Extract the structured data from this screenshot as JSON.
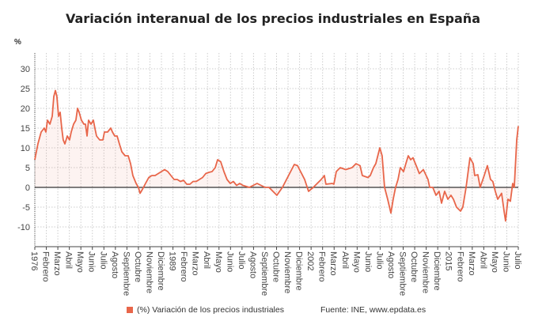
{
  "chart_data": {
    "type": "area",
    "title": "Variación interanual de los precios industriales en España",
    "ylabel": "%",
    "ylim": [
      -10,
      30
    ],
    "yticks": [
      30,
      25,
      20,
      15,
      10,
      5,
      0,
      -5,
      -10
    ],
    "x_ticks": [
      "1976",
      "Febrero",
      "Marzo",
      "Abril",
      "Mayo",
      "Junio",
      "Julio",
      "Agosto",
      "Septiembre",
      "Octubre",
      "Noviembre",
      "Diciembre",
      "1989",
      "Febrero",
      "Marzo",
      "Abril",
      "Mayo",
      "Junio",
      "Julio",
      "Agosto",
      "Septiembre",
      "Octubre",
      "Noviembre",
      "Diciembre",
      "2002",
      "Febrero",
      "Marzo",
      "Abril",
      "Mayo",
      "Junio",
      "Julio",
      "Agosto",
      "Septiembre",
      "Octubre",
      "Noviembre",
      "Diciembre",
      "2015",
      "Febrero",
      "Marzo",
      "Abril",
      "Mayo",
      "Junio",
      "Julio"
    ],
    "grid": true,
    "legend_placement": "bottom",
    "series": [
      {
        "name": "(%) Variación de los precios industriales",
        "color": "#e8664a",
        "points": [
          [
            0,
            7
          ],
          [
            0.27,
            11
          ],
          [
            0.55,
            14
          ],
          [
            0.82,
            15
          ],
          [
            0.96,
            14
          ],
          [
            1.1,
            17
          ],
          [
            1.31,
            16
          ],
          [
            1.51,
            18
          ],
          [
            1.65,
            23
          ],
          [
            1.79,
            24.5
          ],
          [
            1.92,
            23
          ],
          [
            2.06,
            18
          ],
          [
            2.2,
            19
          ],
          [
            2.34,
            15
          ],
          [
            2.47,
            12
          ],
          [
            2.61,
            11
          ],
          [
            2.82,
            13
          ],
          [
            3.02,
            12
          ],
          [
            3.16,
            14
          ],
          [
            3.37,
            16
          ],
          [
            3.57,
            17
          ],
          [
            3.71,
            20
          ],
          [
            3.85,
            19
          ],
          [
            4.05,
            17
          ],
          [
            4.26,
            16
          ],
          [
            4.4,
            16
          ],
          [
            4.54,
            13
          ],
          [
            4.67,
            17
          ],
          [
            4.88,
            16
          ],
          [
            5.09,
            17
          ],
          [
            5.22,
            15
          ],
          [
            5.36,
            13
          ],
          [
            5.64,
            12
          ],
          [
            5.91,
            12
          ],
          [
            6.05,
            14
          ],
          [
            6.32,
            14
          ],
          [
            6.6,
            15
          ],
          [
            6.74,
            14
          ],
          [
            6.94,
            13
          ],
          [
            7.15,
            13
          ],
          [
            7.35,
            11
          ],
          [
            7.56,
            9
          ],
          [
            7.84,
            8
          ],
          [
            8.11,
            8
          ],
          [
            8.32,
            6
          ],
          [
            8.52,
            3
          ],
          [
            8.8,
            1
          ],
          [
            9.0,
            0
          ],
          [
            9.14,
            -1.5
          ],
          [
            9.35,
            -0.5
          ],
          [
            9.62,
            1
          ],
          [
            9.9,
            2.5
          ],
          [
            10.17,
            3
          ],
          [
            10.45,
            3
          ],
          [
            10.72,
            3.5
          ],
          [
            11.0,
            4
          ],
          [
            11.27,
            4.5
          ],
          [
            11.55,
            4
          ],
          [
            11.82,
            3
          ],
          [
            12.1,
            2
          ],
          [
            12.37,
            2
          ],
          [
            12.65,
            1.5
          ],
          [
            12.92,
            1.8
          ],
          [
            13.2,
            0.8
          ],
          [
            13.47,
            0.8
          ],
          [
            13.75,
            1.5
          ],
          [
            14.02,
            1.5
          ],
          [
            14.3,
            2
          ],
          [
            14.57,
            2.5
          ],
          [
            14.85,
            3.5
          ],
          [
            15.12,
            3.8
          ],
          [
            15.4,
            4
          ],
          [
            15.67,
            5
          ],
          [
            15.88,
            7
          ],
          [
            16.15,
            6.5
          ],
          [
            16.43,
            4
          ],
          [
            16.7,
            2
          ],
          [
            16.98,
            1
          ],
          [
            17.25,
            1.5
          ],
          [
            17.53,
            0.5
          ],
          [
            17.8,
            1
          ],
          [
            18.08,
            0.5
          ],
          [
            18.63,
            0
          ],
          [
            19.31,
            1
          ],
          [
            20.0,
            0
          ],
          [
            20.34,
            0
          ],
          [
            21.03,
            -2
          ],
          [
            21.51,
            0
          ],
          [
            22.54,
            5.8
          ],
          [
            22.82,
            5.5
          ],
          [
            23.44,
            2
          ],
          [
            23.78,
            -1
          ],
          [
            24.19,
            0
          ],
          [
            24.88,
            2
          ],
          [
            25.15,
            3
          ],
          [
            25.29,
            0.8
          ],
          [
            25.84,
            1
          ],
          [
            25.98,
            0.8
          ],
          [
            26.19,
            4
          ],
          [
            26.53,
            5
          ],
          [
            27.01,
            4.5
          ],
          [
            27.56,
            5
          ],
          [
            27.9,
            6
          ],
          [
            28.25,
            5.5
          ],
          [
            28.45,
            3
          ],
          [
            28.93,
            2.5
          ],
          [
            29.14,
            3
          ],
          [
            29.42,
            5
          ],
          [
            29.62,
            6
          ],
          [
            29.97,
            10
          ],
          [
            30.17,
            8
          ],
          [
            30.38,
            0
          ],
          [
            30.65,
            -3
          ],
          [
            30.93,
            -6.5
          ],
          [
            31.13,
            -3
          ],
          [
            31.34,
            0
          ],
          [
            31.55,
            2
          ],
          [
            31.75,
            5
          ],
          [
            32.03,
            4
          ],
          [
            32.23,
            6
          ],
          [
            32.44,
            8
          ],
          [
            32.65,
            7
          ],
          [
            32.85,
            7.5
          ],
          [
            33.2,
            5
          ],
          [
            33.4,
            3.5
          ],
          [
            33.75,
            4.5
          ],
          [
            34.16,
            2
          ],
          [
            34.3,
            0
          ],
          [
            34.57,
            0
          ],
          [
            34.85,
            -2
          ],
          [
            35.12,
            -1
          ],
          [
            35.33,
            -4
          ],
          [
            35.6,
            -1
          ],
          [
            35.88,
            -3
          ],
          [
            36.15,
            -2
          ],
          [
            36.36,
            -3
          ],
          [
            36.63,
            -5
          ],
          [
            36.98,
            -6
          ],
          [
            37.18,
            -5
          ],
          [
            37.46,
            0
          ],
          [
            37.8,
            7.5
          ],
          [
            38.08,
            6
          ],
          [
            38.21,
            3
          ],
          [
            38.49,
            3.2
          ],
          [
            38.69,
            0
          ],
          [
            39.04,
            3
          ],
          [
            39.31,
            5.5
          ],
          [
            39.59,
            2
          ],
          [
            39.79,
            1.5
          ],
          [
            40.0,
            -1
          ],
          [
            40.21,
            -3
          ],
          [
            40.55,
            -1.5
          ],
          [
            40.76,
            -6
          ],
          [
            40.89,
            -8.5
          ],
          [
            41.1,
            -3
          ],
          [
            41.31,
            -3.5
          ],
          [
            41.51,
            1
          ],
          [
            41.65,
            0
          ],
          [
            41.86,
            12
          ],
          [
            42.0,
            15.5
          ]
        ]
      }
    ]
  },
  "legend": {
    "label": "(%) Variación de los precios industriales"
  },
  "source": "Fuente: INE, www.epdata.es"
}
